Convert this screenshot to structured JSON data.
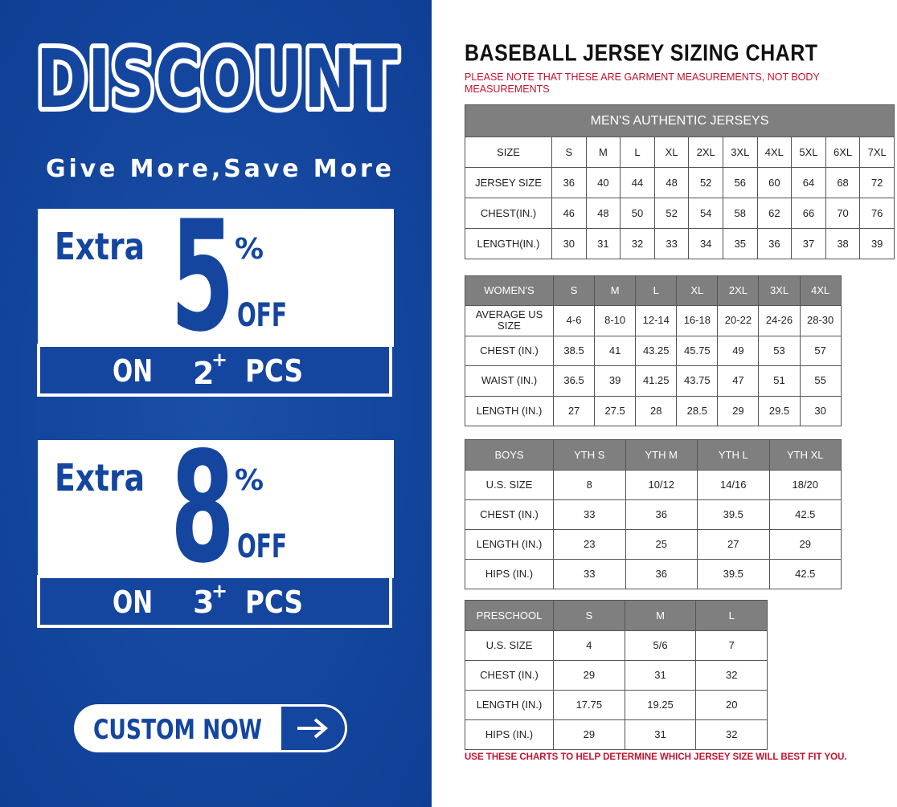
{
  "promo": {
    "title": "DISCOUNT",
    "tagline": "Give More,Save More",
    "offers": [
      {
        "extra": "Extra",
        "number": "5",
        "percent": "%",
        "off": "OFF",
        "on": "ON",
        "qty": "2",
        "plus": "+",
        "pcs": "PCS"
      },
      {
        "extra": "Extra",
        "number": "8",
        "percent": "%",
        "off": "OFF",
        "on": "ON",
        "qty": "3",
        "plus": "+",
        "pcs": "PCS"
      }
    ],
    "button": "CUSTOM NOW"
  },
  "chart": {
    "title": "BASEBALL JERSEY SIZING CHART",
    "note": "PLEASE NOTE THAT THESE ARE GARMENT MEASUREMENTS, NOT BODY MEASUREMENTS",
    "tables": [
      {
        "caption": "MEN'S AUTHENTIC JERSEYS",
        "header": [
          "SIZE",
          "S",
          "M",
          "L",
          "XL",
          "2XL",
          "3XL",
          "4XL",
          "5XL",
          "6XL",
          "7XL"
        ],
        "rows": [
          [
            "JERSEY SIZE",
            "36",
            "40",
            "44",
            "48",
            "52",
            "56",
            "60",
            "64",
            "68",
            "72"
          ],
          [
            "CHEST(IN.)",
            "46",
            "48",
            "50",
            "52",
            "54",
            "58",
            "62",
            "66",
            "70",
            "76"
          ],
          [
            "LENGTH(IN.)",
            "30",
            "31",
            "32",
            "33",
            "34",
            "35",
            "36",
            "37",
            "38",
            "39"
          ]
        ]
      },
      {
        "header": [
          "WOMEN'S",
          "S",
          "M",
          "L",
          "XL",
          "2XL",
          "3XL",
          "4XL"
        ],
        "rows": [
          [
            "AVERAGE US SIZE",
            "4-6",
            "8-10",
            "12-14",
            "16-18",
            "20-22",
            "24-26",
            "28-30"
          ],
          [
            "CHEST (IN.)",
            "38.5",
            "41",
            "43.25",
            "45.75",
            "49",
            "53",
            "57"
          ],
          [
            "WAIST (IN.)",
            "36.5",
            "39",
            "41.25",
            "43.75",
            "47",
            "51",
            "55"
          ],
          [
            "LENGTH (IN.)",
            "27",
            "27.5",
            "28",
            "28.5",
            "29",
            "29.5",
            "30"
          ]
        ]
      },
      {
        "header": [
          "BOYS",
          "YTH S",
          "YTH M",
          "YTH L",
          "YTH XL"
        ],
        "rows": [
          [
            "U.S. SIZE",
            "8",
            "10/12",
            "14/16",
            "18/20"
          ],
          [
            "CHEST (IN.)",
            "33",
            "36",
            "39.5",
            "42.5"
          ],
          [
            "LENGTH (IN.)",
            "23",
            "25",
            "27",
            "29"
          ],
          [
            "HIPS (IN.)",
            "33",
            "36",
            "39.5",
            "42.5"
          ]
        ]
      },
      {
        "header": [
          "PRESCHOOL",
          "S",
          "M",
          "L"
        ],
        "rows": [
          [
            "U.S. SIZE",
            "4",
            "5/6",
            "7"
          ],
          [
            "CHEST (IN.)",
            "29",
            "31",
            "32"
          ],
          [
            "LENGTH (IN.)",
            "17.75",
            "19.25",
            "20"
          ],
          [
            "HIPS (IN.)",
            "29",
            "31",
            "32"
          ]
        ]
      }
    ],
    "footer": "USE THESE CHARTS TO HELP DETERMINE WHICH JERSEY SIZE WILL BEST FIT YOU."
  }
}
